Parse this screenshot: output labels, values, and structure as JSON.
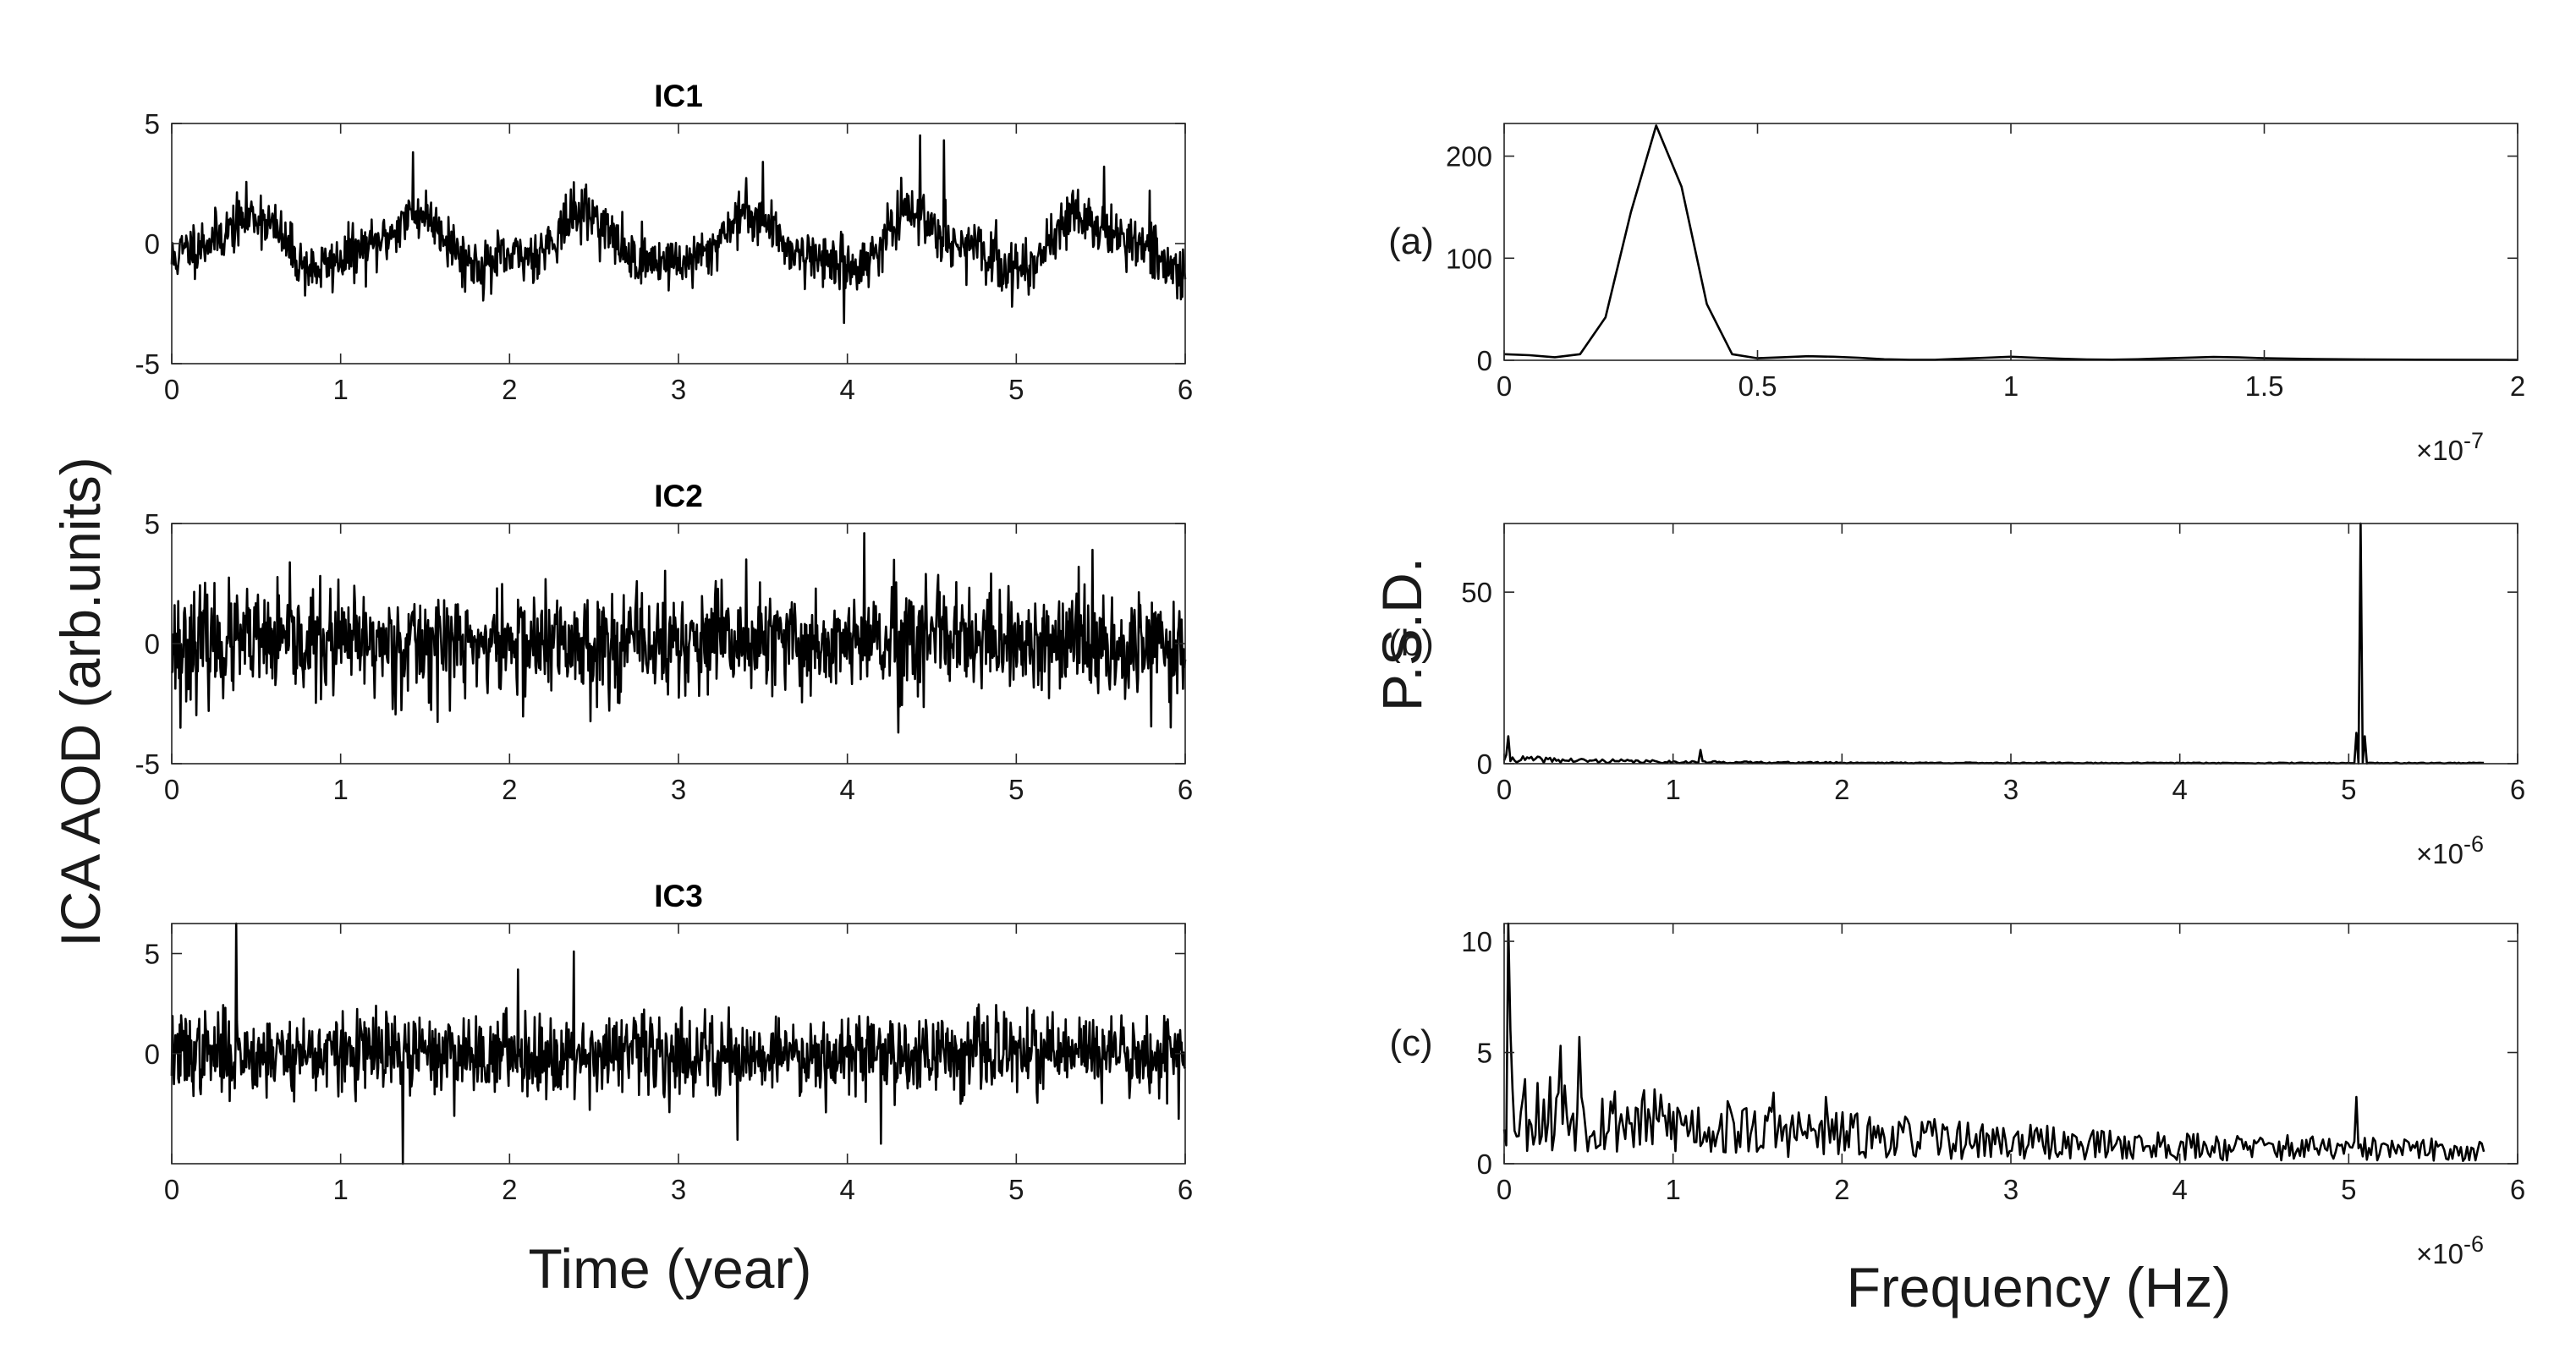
{
  "figure": {
    "time_axis_label": "Time (year)",
    "left_ylabel": "ICA AOD (arb.units)",
    "freq_axis_label": "Frequency (Hz)",
    "right_ylabel": "P.S.D.",
    "colors": {
      "line": "#000000",
      "axis": "#262626",
      "background": "#ffffff"
    }
  },
  "chart_data": [
    {
      "id": "ic1",
      "type": "line",
      "title": "IC1",
      "xlabel": "",
      "ylabel": "",
      "xlim": [
        0,
        6
      ],
      "ylim": [
        -5,
        5
      ],
      "xticks": [
        0,
        1,
        2,
        3,
        4,
        5,
        6
      ],
      "yticks": [
        -5,
        0,
        5
      ],
      "signal": {
        "kind": "seasonal-noise",
        "period_years": 1,
        "amplitude": 1.0,
        "noise": 0.55,
        "n_points": 1400,
        "seed": 11,
        "spikes": [
          [
            1.43,
            3.8
          ],
          [
            3.98,
            -3.3
          ],
          [
            4.43,
            4.5
          ],
          [
            4.57,
            4.3
          ],
          [
            5.52,
            3.2
          ],
          [
            3.5,
            3.4
          ]
        ]
      }
    },
    {
      "id": "ic2",
      "type": "line",
      "title": "IC2",
      "xlabel": "",
      "ylabel": "",
      "xlim": [
        0,
        6
      ],
      "ylim": [
        -5,
        5
      ],
      "xticks": [
        0,
        1,
        2,
        3,
        4,
        5,
        6
      ],
      "yticks": [
        -5,
        0,
        5
      ],
      "signal": {
        "kind": "noise",
        "noise": 1.1,
        "n_points": 1400,
        "seed": 23,
        "spikes": [
          [
            4.1,
            4.6
          ],
          [
            5.45,
            3.9
          ],
          [
            0.05,
            -3.5
          ],
          [
            4.3,
            -3.7
          ],
          [
            3.4,
            3.5
          ]
        ]
      }
    },
    {
      "id": "ic3",
      "type": "line",
      "title": "IC3",
      "xlabel": "Time (year)",
      "ylabel": "",
      "xlim": [
        0,
        6
      ],
      "ylim": [
        -5.5,
        6.5
      ],
      "xticks": [
        0,
        1,
        2,
        3,
        4,
        5,
        6
      ],
      "yticks": [
        0,
        5
      ],
      "signal": {
        "kind": "noise",
        "noise": 1.0,
        "n_points": 1400,
        "seed": 37,
        "spikes": [
          [
            0.38,
            6.6
          ],
          [
            1.37,
            -5.5
          ],
          [
            2.38,
            5.1
          ],
          [
            3.35,
            -4.3
          ],
          [
            4.2,
            -4.5
          ],
          [
            2.05,
            4.2
          ]
        ]
      }
    },
    {
      "id": "psd_a",
      "type": "line",
      "panel_label": "(a)",
      "xlabel": "",
      "ylabel": "",
      "xlim": [
        0,
        2
      ],
      "ylim": [
        0,
        232
      ],
      "xticks": [
        0,
        0.5,
        1,
        1.5,
        2
      ],
      "xtick_labels": [
        "0",
        "0.5",
        "1",
        "1.5",
        "2"
      ],
      "yticks": [
        0,
        100,
        200
      ],
      "exponent": "-7",
      "x": [
        0,
        0.05,
        0.1,
        0.15,
        0.2,
        0.25,
        0.3,
        0.35,
        0.4,
        0.45,
        0.5,
        0.55,
        0.6,
        0.65,
        0.7,
        0.75,
        0.8,
        0.85,
        0.9,
        0.95,
        1.0,
        1.05,
        1.1,
        1.15,
        1.2,
        1.25,
        1.3,
        1.35,
        1.4,
        1.45,
        1.5,
        1.6,
        1.7,
        1.8,
        1.9,
        2.0
      ],
      "y": [
        6,
        5,
        3,
        6,
        42,
        145,
        230,
        170,
        55,
        6,
        2,
        3,
        4,
        3.5,
        2.5,
        1,
        0.5,
        0.5,
        1.5,
        2.5,
        3.5,
        2.5,
        1.5,
        0.8,
        0.6,
        1.0,
        1.8,
        2.6,
        3.2,
        2.8,
        2.0,
        1.2,
        0.8,
        0.6,
        0.5,
        0.4
      ]
    },
    {
      "id": "psd_b",
      "type": "line",
      "panel_label": "(b)",
      "xlabel": "",
      "ylabel": "P.S.D.",
      "xlim": [
        0,
        6
      ],
      "ylim": [
        0,
        70
      ],
      "xticks": [
        0,
        1,
        2,
        3,
        4,
        5,
        6
      ],
      "yticks": [
        0,
        50
      ],
      "exponent": "-6",
      "x_end": 5.8,
      "spectrum": {
        "n_points": 470,
        "seed": 41,
        "base": 2.2,
        "decay": 1.3,
        "floor": 0.3,
        "jitter": 1.6,
        "peaks": [
          [
            0.03,
            8
          ],
          [
            1.16,
            4
          ],
          [
            5.04,
            9
          ],
          [
            5.07,
            70
          ],
          [
            5.1,
            8
          ]
        ]
      }
    },
    {
      "id": "psd_c",
      "type": "line",
      "panel_label": "(c)",
      "xlabel": "Frequency (Hz)",
      "ylabel": "",
      "xlim": [
        0,
        6
      ],
      "ylim": [
        0,
        10.8
      ],
      "xticks": [
        0,
        1,
        2,
        3,
        4,
        5,
        6
      ],
      "yticks": [
        0,
        5,
        10
      ],
      "exponent": "-6",
      "x_end": 5.8,
      "spectrum": {
        "n_points": 470,
        "seed": 53,
        "base": 2.6,
        "decay": 0.45,
        "floor": 0.55,
        "jitter": 2.4,
        "peaks": [
          [
            0.02,
            10.8
          ],
          [
            0.035,
            6
          ],
          [
            0.45,
            5.7
          ],
          [
            0.33,
            5.3
          ],
          [
            5.05,
            3.0
          ],
          [
            1.6,
            3.2
          ],
          [
            1.9,
            3.0
          ]
        ]
      }
    }
  ]
}
